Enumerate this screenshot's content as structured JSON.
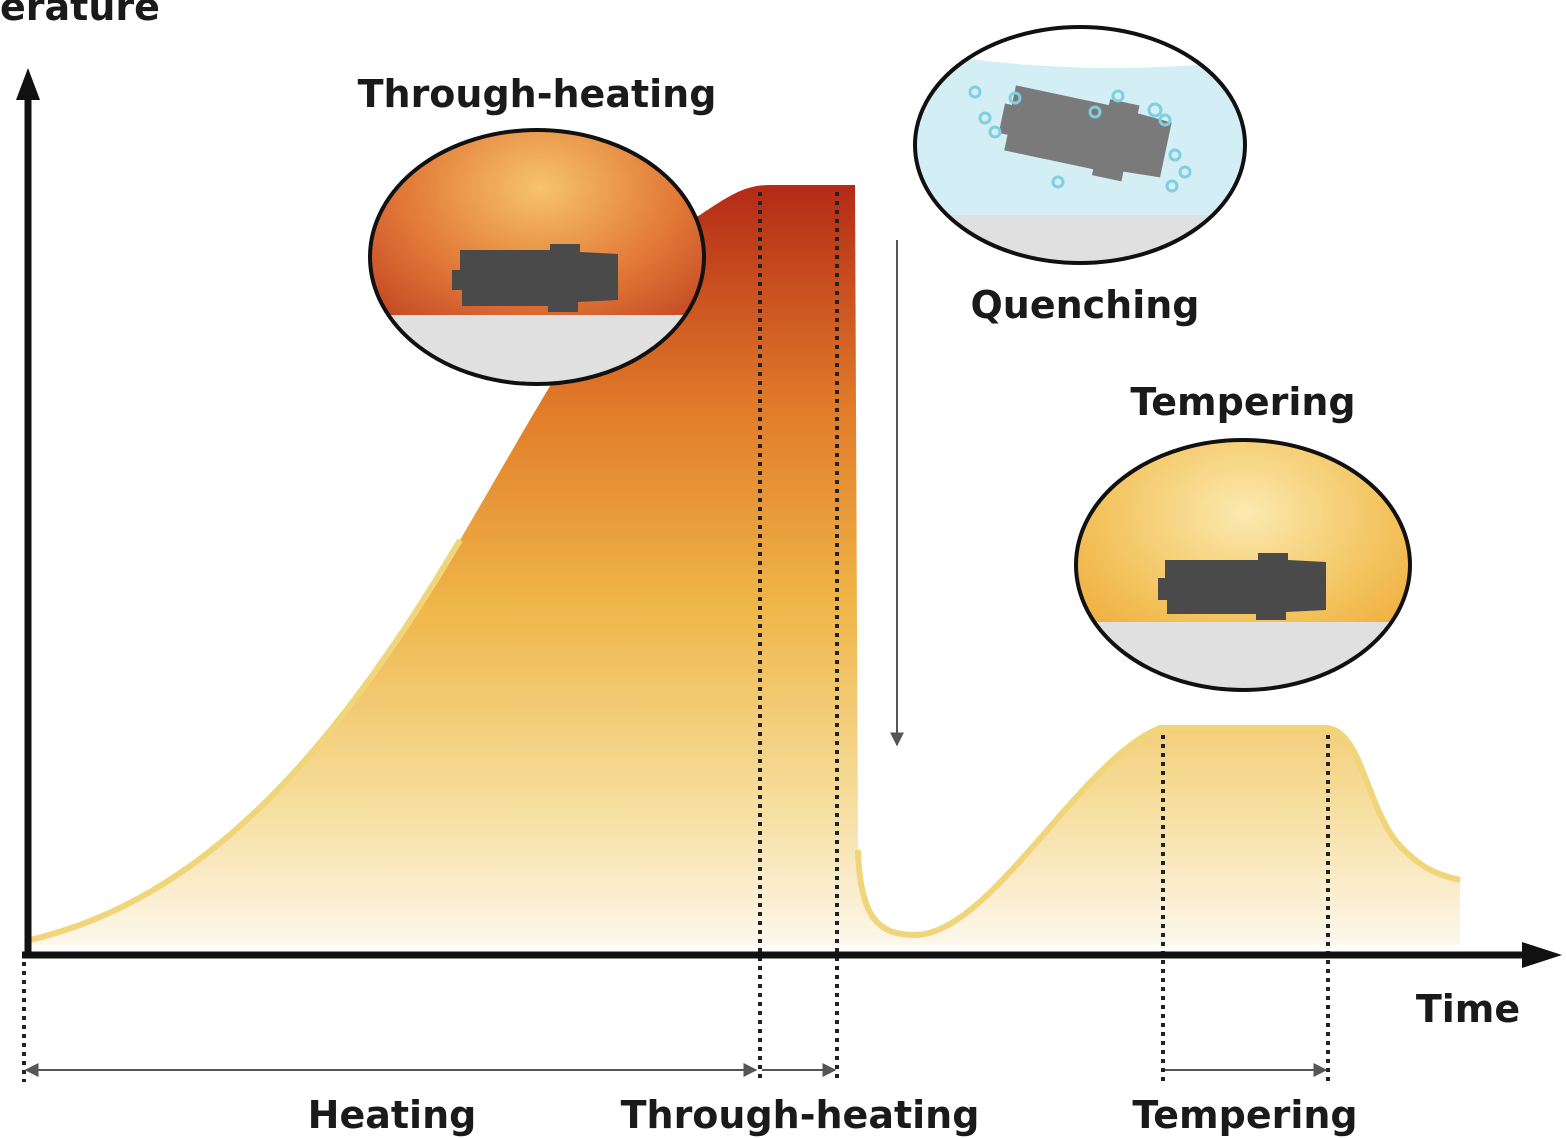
{
  "axes": {
    "y_label": "erature",
    "x_label": "Time"
  },
  "illustrations": [
    {
      "label": "Through-heating"
    },
    {
      "label": "Quenching"
    },
    {
      "label": "Tempering"
    }
  ],
  "phases": [
    {
      "label": "Heating"
    },
    {
      "label": "Through-heating"
    },
    {
      "label": "Tempering"
    }
  ]
}
